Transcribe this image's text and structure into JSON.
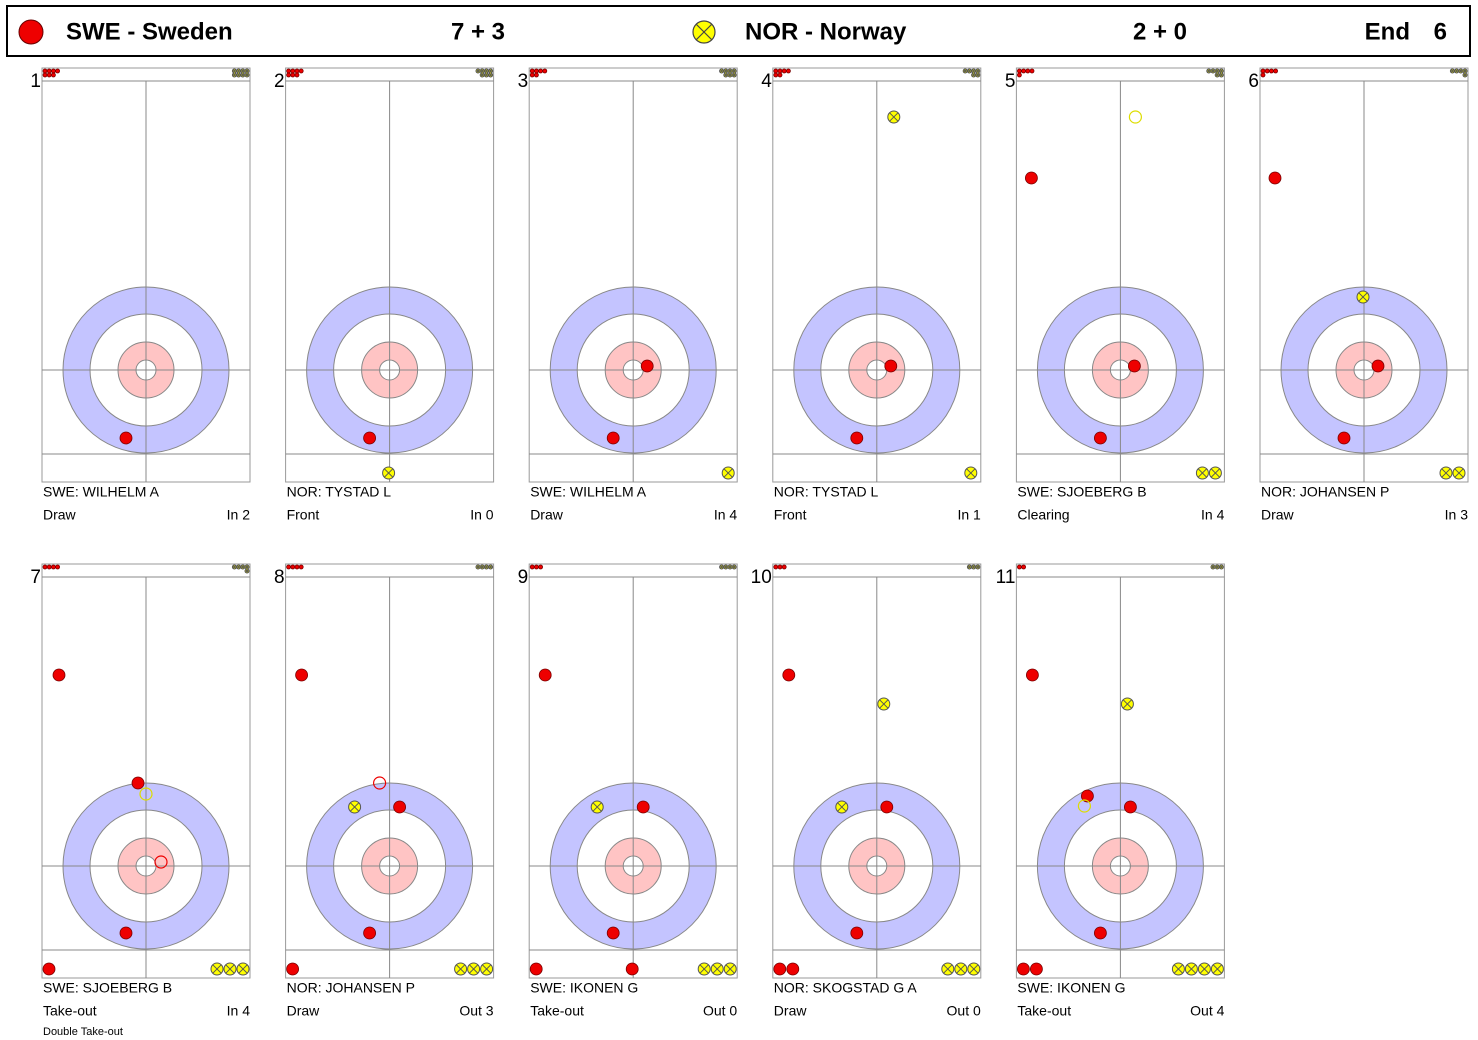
{
  "header": {
    "team1": "SWE - Sweden",
    "score1": "7 + 3",
    "team2": "NOR - Norway",
    "score2": "2 + 0",
    "end_label": "End",
    "end": 6
  },
  "shots": [
    {
      "number": 1,
      "player": "SWE: WILHELM A",
      "shot": "Draw",
      "result": "In  2"
    },
    {
      "number": 2,
      "player": "NOR: TYSTAD L",
      "shot": "Front",
      "result": "In  0"
    },
    {
      "number": 3,
      "player": "SWE: WILHELM A",
      "shot": "Draw",
      "result": "In  4"
    },
    {
      "number": 4,
      "player": "NOR: TYSTAD L",
      "shot": "Front",
      "result": "In  1"
    },
    {
      "number": 5,
      "player": "SWE: SJOEBERG B",
      "shot": "Clearing",
      "result": "In  4"
    },
    {
      "number": 6,
      "player": "NOR: JOHANSEN P",
      "shot": "Draw",
      "result": "In  3"
    },
    {
      "number": 7,
      "player": "SWE: SJOEBERG B",
      "shot": "Take-out",
      "result": "In  4",
      "note": "Double Take-out"
    },
    {
      "number": 8,
      "player": "NOR: JOHANSEN P",
      "shot": "Draw",
      "result": "Out 3"
    },
    {
      "number": 9,
      "player": "SWE: IKONEN G",
      "shot": "Take-out",
      "result": "Out 0"
    },
    {
      "number": 10,
      "player": "NOR: SKOGSTAD G A",
      "shot": "Draw",
      "result": "Out 0"
    },
    {
      "number": 11,
      "player": "SWE: IKONEN G",
      "shot": "Take-out",
      "result": "Out 4"
    }
  ]
}
